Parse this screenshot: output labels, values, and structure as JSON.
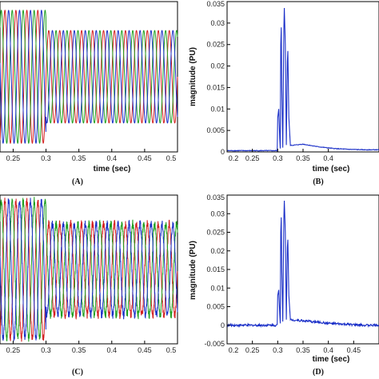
{
  "colors": {
    "phase_a": "#d42020",
    "phase_b": "#20a020",
    "phase_c": "#1a2fc8",
    "magnitude": "#1a2fc8"
  },
  "chart_data": [
    {
      "type": "line",
      "panel_label": "(A)",
      "xlabel": "time (sec)",
      "ylabel": "",
      "xlim": [
        0.23,
        0.5
      ],
      "ylim": [
        -1.3,
        1.3
      ],
      "x_ticks": [
        "0.25",
        "0.3",
        "0.35",
        "0.4",
        "0.45",
        "0.5"
      ],
      "y_ticks": [],
      "grid": false,
      "series": [
        {
          "phase": 0,
          "color": "#d42020",
          "freq": 60,
          "x": [
            0.23,
            0.3,
            0.3,
            0.5
          ],
          "y": [
            1.15,
            1.15,
            0.8,
            0.8
          ]
        },
        {
          "phase": 120,
          "color": "#20a020",
          "freq": 60,
          "x": [
            0.23,
            0.3,
            0.3,
            0.5
          ],
          "y": [
            1.15,
            1.15,
            0.8,
            0.8
          ]
        },
        {
          "phase": 240,
          "color": "#1a2fc8",
          "freq": 60,
          "x": [
            0.23,
            0.3,
            0.3,
            0.5
          ],
          "y": [
            1.15,
            1.15,
            0.8,
            0.8
          ]
        }
      ]
    },
    {
      "type": "line",
      "panel_label": "(B)",
      "xlabel": "time (sec)",
      "ylabel": "magnitude (PU)",
      "xlim": [
        0.2,
        0.5
      ],
      "ylim": [
        0,
        0.035
      ],
      "x_ticks": [
        "0.2",
        "0.25",
        "0.3",
        "0.35",
        "0.4"
      ],
      "y_ticks": [
        "0",
        "0.005",
        "0.01",
        "0.015",
        "0.02",
        "0.025",
        "0.03",
        "0.035"
      ],
      "grid": false,
      "series": [
        {
          "color": "#1a2fc8",
          "x": [
            0.2,
            0.25,
            0.299,
            0.3,
            0.302,
            0.304,
            0.305,
            0.306,
            0.307,
            0.308,
            0.31,
            0.312,
            0.313,
            0.315,
            0.317,
            0.319,
            0.32,
            0.322,
            0.325,
            0.35,
            0.38,
            0.41,
            0.44,
            0.47,
            0.5
          ],
          "y": [
            0.0003,
            0.0003,
            0.0003,
            0.008,
            0.01,
            0.003,
            0.0008,
            0.025,
            0.029,
            0.015,
            0.001,
            0.028,
            0.0335,
            0.025,
            0.0016,
            0.021,
            0.0235,
            0.008,
            0.0015,
            0.0018,
            0.0012,
            0.0008,
            0.0006,
            0.0005,
            0.0005
          ]
        }
      ]
    },
    {
      "type": "line",
      "panel_label": "(C)",
      "xlabel": "",
      "ylabel": "",
      "xlim": [
        0.23,
        0.5
      ],
      "ylim": [
        -1.3,
        1.3
      ],
      "x_ticks": [
        "0.25",
        "0.3",
        "0.35",
        "0.4",
        "0.45",
        "0.5"
      ],
      "y_ticks": [],
      "grid": false,
      "series": [
        {
          "phase": 0,
          "color": "#d42020",
          "freq": 60,
          "x": [
            0.23,
            0.3,
            0.3,
            0.5
          ],
          "y": [
            1.2,
            1.2,
            0.8,
            0.8
          ]
        },
        {
          "phase": 120,
          "color": "#20a020",
          "freq": 60,
          "x": [
            0.23,
            0.3,
            0.3,
            0.5
          ],
          "y": [
            1.2,
            1.2,
            0.8,
            0.8
          ]
        },
        {
          "phase": 240,
          "color": "#1a2fc8",
          "freq": 60,
          "x": [
            0.23,
            0.3,
            0.3,
            0.5
          ],
          "y": [
            1.2,
            1.2,
            0.8,
            0.8
          ]
        }
      ]
    },
    {
      "type": "line",
      "panel_label": "(D)",
      "xlabel": "time (sec)",
      "ylabel": "magnitude (PU)",
      "xlim": [
        0.2,
        0.5
      ],
      "ylim": [
        -0.005,
        0.035
      ],
      "x_ticks": [
        "0.2",
        "0.25",
        "0.3",
        "0.35",
        "0.4",
        "0.45"
      ],
      "y_ticks": [
        "-0.005",
        "0",
        "0.005",
        "0.01",
        "0.015",
        "0.02",
        "0.025",
        "0.03",
        "0.035"
      ],
      "grid": false,
      "series": [
        {
          "color": "#1a2fc8",
          "x": [
            0.2,
            0.25,
            0.299,
            0.3,
            0.302,
            0.304,
            0.305,
            0.306,
            0.307,
            0.308,
            0.31,
            0.312,
            0.313,
            0.315,
            0.317,
            0.319,
            0.32,
            0.322,
            0.325,
            0.35,
            0.38,
            0.41,
            0.44,
            0.47,
            0.5
          ],
          "y": [
            0.0,
            0.0,
            0.0,
            0.008,
            0.0095,
            0.003,
            0.0005,
            0.025,
            0.029,
            0.015,
            0.001,
            0.028,
            0.0335,
            0.025,
            0.0015,
            0.021,
            0.023,
            0.008,
            0.0015,
            0.0012,
            0.0008,
            0.0004,
            0.0002,
            0.0,
            0.0
          ]
        }
      ]
    }
  ]
}
